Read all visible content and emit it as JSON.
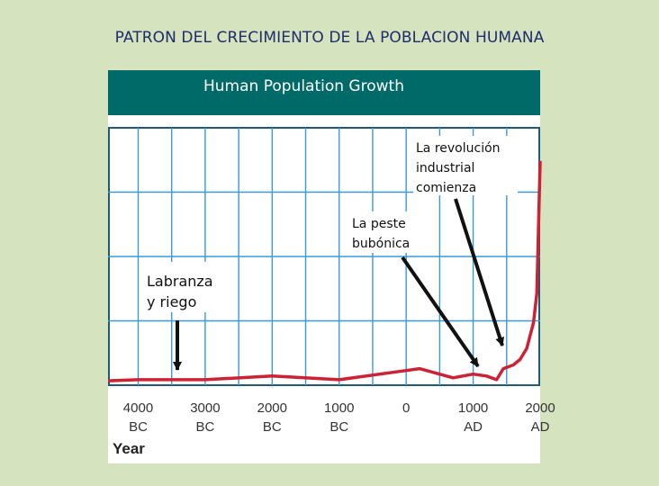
{
  "slide": {
    "title": "PATRON DEL CRECIMIENTO DE LA POBLACION HUMANA"
  },
  "figure": {
    "header": "Human Population Growth"
  },
  "chart_data": {
    "type": "line",
    "title": "Human Population Growth",
    "xlabel": "Year",
    "ylabel": "",
    "grid": true,
    "xlim": [
      -4450,
      2000
    ],
    "ylim": [
      0,
      7
    ],
    "x_ticks": [
      {
        "value": -4000,
        "line1": "4000",
        "line2": "BC"
      },
      {
        "value": -3000,
        "line1": "3000",
        "line2": "BC"
      },
      {
        "value": -2000,
        "line1": "2000",
        "line2": "BC"
      },
      {
        "value": -1000,
        "line1": "1000",
        "line2": "BC"
      },
      {
        "value": 0,
        "line1": "0",
        "line2": ""
      },
      {
        "value": 1000,
        "line1": "1000",
        "line2": "AD"
      },
      {
        "value": 2000,
        "line1": "2000",
        "line2": "AD"
      }
    ],
    "series": [
      {
        "color": "#cc2233",
        "x": [
          -4450,
          -4000,
          -3000,
          -2000,
          -1000,
          0,
          200,
          700,
          1000,
          1200,
          1350,
          1450,
          1600,
          1700,
          1800,
          1900,
          1950,
          2000
        ],
        "y": [
          0.12,
          0.15,
          0.15,
          0.25,
          0.15,
          0.4,
          0.45,
          0.2,
          0.3,
          0.25,
          0.15,
          0.45,
          0.55,
          0.7,
          1.0,
          1.7,
          2.5,
          6.1
        ]
      }
    ],
    "annotations": [
      {
        "text": [
          "Labranza",
          "y riego"
        ],
        "x": -3350
      },
      {
        "text": [
          "La peste",
          "bubónica"
        ],
        "x": 1300
      },
      {
        "text": [
          "La revolución",
          "industrial",
          "comienza"
        ],
        "x": 1700
      }
    ]
  }
}
